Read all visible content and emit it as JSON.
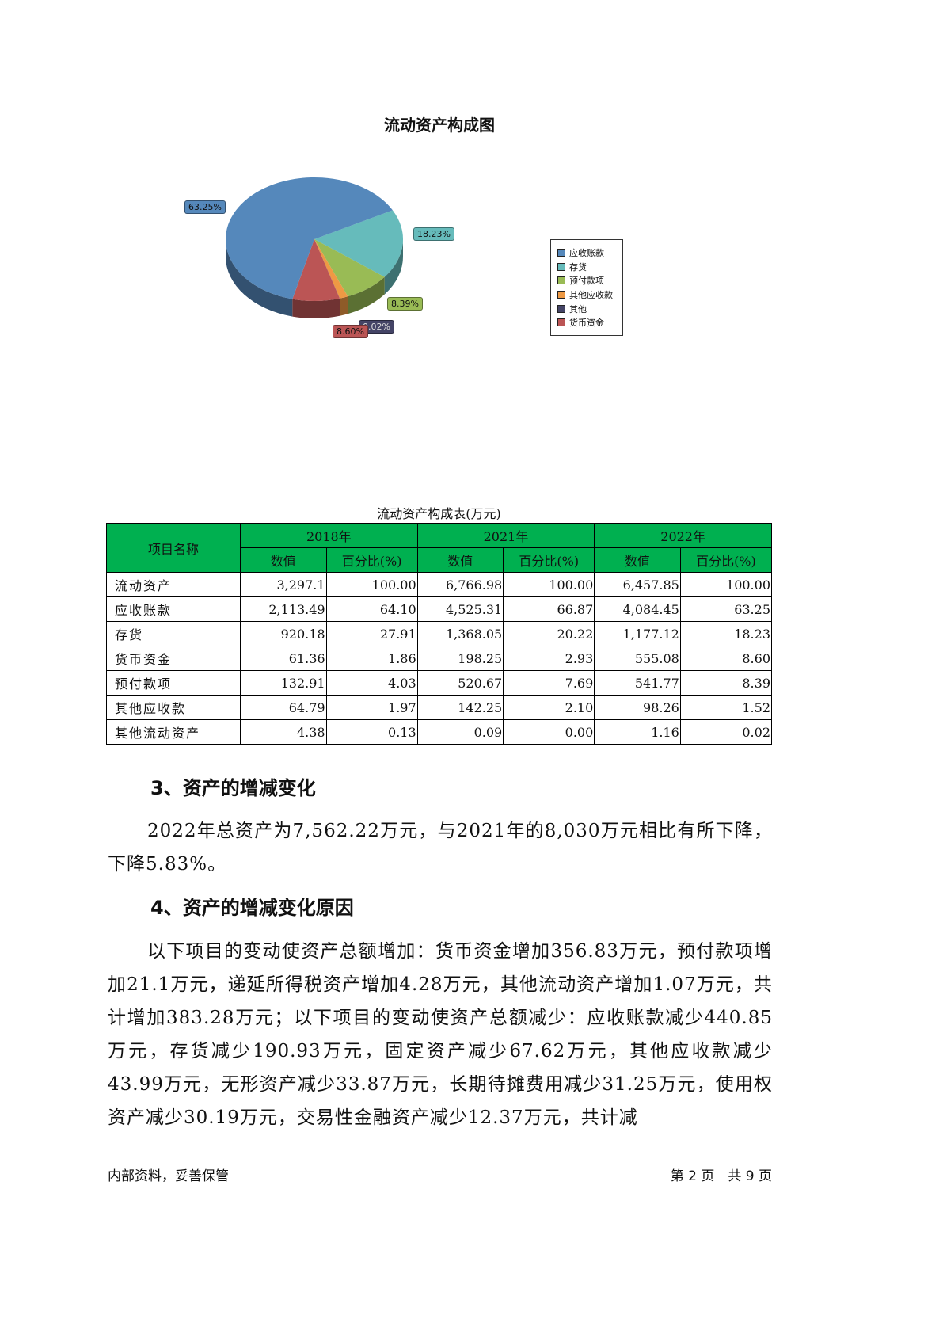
{
  "chart_data": {
    "type": "pie",
    "title": "流动资产构成图",
    "categories": [
      "应收账款",
      "存货",
      "预付款项",
      "其他应收款",
      "其他",
      "货币资金"
    ],
    "values": [
      63.25,
      18.23,
      8.39,
      1.52,
      0.02,
      8.6
    ],
    "data_labels": [
      "63.25%",
      "18.23%",
      "8.39%",
      "",
      "0.02%",
      "8.60%"
    ],
    "colors": [
      "#5588bb",
      "#66bbbb",
      "#99bb55",
      "#ee9944",
      "#444466",
      "#bb5555"
    ],
    "legend": "right",
    "style": "3d"
  },
  "table": {
    "caption": "流动资产构成表(万元)",
    "header_name": "项目名称",
    "years": [
      "2018年",
      "2021年",
      "2022年"
    ],
    "sub": [
      "数值",
      "百分比(%)"
    ],
    "rows": [
      [
        "流动资产",
        "3,297.1",
        "100.00",
        "6,766.98",
        "100.00",
        "6,457.85",
        "100.00"
      ],
      [
        "应收账款",
        "2,113.49",
        "64.10",
        "4,525.31",
        "66.87",
        "4,084.45",
        "63.25"
      ],
      [
        "存货",
        "920.18",
        "27.91",
        "1,368.05",
        "20.22",
        "1,177.12",
        "18.23"
      ],
      [
        "货币资金",
        "61.36",
        "1.86",
        "198.25",
        "2.93",
        "555.08",
        "8.60"
      ],
      [
        "预付款项",
        "132.91",
        "4.03",
        "520.67",
        "7.69",
        "541.77",
        "8.39"
      ],
      [
        "其他应收款",
        "64.79",
        "1.97",
        "142.25",
        "2.10",
        "98.26",
        "1.52"
      ],
      [
        "其他流动资产",
        "4.38",
        "0.13",
        "0.09",
        "0.00",
        "1.16",
        "0.02"
      ]
    ]
  },
  "section3": {
    "heading": "3、资产的增减变化",
    "text": "2022年总资产为7,562.22万元，与2021年的8,030万元相比有所下降，下降5.83%。"
  },
  "section4": {
    "heading": "4、资产的增减变化原因",
    "text": "以下项目的变动使资产总额增加：货币资金增加356.83万元，预付款项增加21.1万元，递延所得税资产增加4.28万元，其他流动资产增加1.07万元，共计增加383.28万元；以下项目的变动使资产总额减少：应收账款减少440.85万元，存货减少190.93万元，固定资产减少67.62万元，其他应收款减少43.99万元，无形资产减少33.87万元，长期待摊费用减少31.25万元，使用权资产减少30.19万元，交易性金融资产减少12.37万元，共计减"
  },
  "footer": {
    "left": "内部资料，妥善保管",
    "right": "第 2 页　共 9 页"
  }
}
